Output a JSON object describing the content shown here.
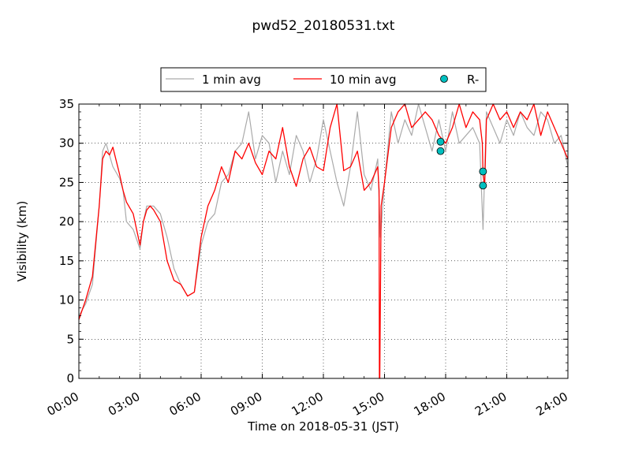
{
  "chart_data": {
    "type": "line",
    "title": "pwd52_20180531.txt",
    "xlabel": "Time on 2018-05-31 (JST)",
    "ylabel": "Visibility (km)",
    "xlim": [
      "00:00",
      "24:00"
    ],
    "ylim": [
      0,
      35
    ],
    "xticks": [
      "00:00",
      "03:00",
      "06:00",
      "09:00",
      "12:00",
      "15:00",
      "18:00",
      "21:00",
      "24:00"
    ],
    "yticks": [
      0,
      5,
      10,
      15,
      20,
      25,
      30,
      35
    ],
    "grid": true,
    "legend_placement": "top-center, outside plot",
    "colors": {
      "avg1": "#aaaaaa",
      "avg10": "#ff0000",
      "rain": "#00bfbf"
    },
    "series": [
      {
        "name": "1 min avg",
        "kind": "line",
        "x": [
          "00:00",
          "00:20",
          "00:40",
          "01:00",
          "01:10",
          "01:20",
          "01:40",
          "02:00",
          "02:10",
          "02:20",
          "02:40",
          "03:00",
          "03:10",
          "03:20",
          "03:40",
          "04:00",
          "04:20",
          "04:40",
          "05:00",
          "05:20",
          "05:40",
          "06:00",
          "06:20",
          "06:40",
          "07:00",
          "07:20",
          "07:40",
          "08:00",
          "08:20",
          "08:40",
          "09:00",
          "09:20",
          "09:40",
          "10:00",
          "10:20",
          "10:40",
          "11:00",
          "11:20",
          "11:40",
          "12:00",
          "12:20",
          "12:40",
          "13:00",
          "13:20",
          "13:40",
          "14:00",
          "14:20",
          "14:40",
          "14:48",
          "15:00",
          "15:20",
          "15:40",
          "16:00",
          "16:20",
          "16:40",
          "17:00",
          "17:20",
          "17:40",
          "18:00",
          "18:20",
          "18:40",
          "19:00",
          "19:20",
          "19:40",
          "19:50",
          "20:00",
          "20:20",
          "20:40",
          "21:00",
          "21:20",
          "21:40",
          "22:00",
          "22:20",
          "22:40",
          "23:00",
          "23:20",
          "23:40",
          "24:00"
        ],
        "y": [
          8,
          9.5,
          12,
          22,
          29,
          30,
          27,
          25.5,
          24,
          20,
          19,
          16.5,
          20,
          22,
          22,
          21,
          18,
          14,
          12,
          10.5,
          11,
          17,
          20,
          21,
          25,
          26,
          29,
          30,
          34,
          28,
          31,
          30,
          25,
          29,
          26,
          31,
          29,
          25,
          28,
          33,
          29,
          25,
          22,
          27,
          34,
          26,
          24,
          28,
          18,
          25,
          34,
          30,
          33,
          31,
          35,
          32,
          29,
          33,
          29,
          34,
          30,
          31,
          32,
          30,
          19,
          34,
          32,
          30,
          33,
          31,
          34,
          32,
          31,
          34,
          33,
          30,
          31,
          27
        ]
      },
      {
        "name": "10 min avg",
        "kind": "line",
        "x": [
          "00:00",
          "00:20",
          "00:40",
          "01:00",
          "01:10",
          "01:20",
          "01:30",
          "01:40",
          "02:00",
          "02:10",
          "02:20",
          "02:40",
          "03:00",
          "03:10",
          "03:20",
          "03:30",
          "03:40",
          "04:00",
          "04:20",
          "04:40",
          "05:00",
          "05:20",
          "05:40",
          "06:00",
          "06:20",
          "06:40",
          "07:00",
          "07:20",
          "07:40",
          "08:00",
          "08:20",
          "08:40",
          "09:00",
          "09:20",
          "09:40",
          "10:00",
          "10:20",
          "10:40",
          "11:00",
          "11:20",
          "11:40",
          "12:00",
          "12:20",
          "12:40",
          "13:00",
          "13:20",
          "13:40",
          "14:00",
          "14:20",
          "14:40",
          "14:44",
          "14:45",
          "14:46",
          "14:50",
          "15:00",
          "15:20",
          "15:40",
          "16:00",
          "16:20",
          "16:40",
          "17:00",
          "17:20",
          "17:40",
          "18:00",
          "18:20",
          "18:40",
          "19:00",
          "19:20",
          "19:40",
          "19:48",
          "19:50",
          "19:55",
          "20:00",
          "20:20",
          "20:40",
          "21:00",
          "21:20",
          "21:40",
          "22:00",
          "22:20",
          "22:40",
          "23:00",
          "23:20",
          "23:40",
          "24:00"
        ],
        "y": [
          7.5,
          10,
          13,
          22,
          28,
          29,
          28.5,
          29.5,
          26,
          24,
          22.5,
          21,
          17,
          20,
          21.5,
          22,
          21.5,
          20,
          15,
          12.5,
          12,
          10.5,
          11,
          18,
          22,
          24,
          27,
          25,
          29,
          28,
          30,
          27.5,
          26,
          29,
          28,
          32,
          27,
          24.5,
          28,
          29.5,
          27,
          26.5,
          32,
          35,
          26.5,
          27,
          29,
          24,
          25,
          27,
          24,
          0,
          0,
          22,
          25,
          32,
          34,
          35,
          32,
          33,
          34,
          33,
          31,
          30,
          32,
          35,
          32,
          34,
          33,
          30,
          26,
          24.5,
          33,
          35,
          33,
          34,
          32,
          34,
          33,
          35,
          31,
          34,
          32,
          30,
          28
        ]
      },
      {
        "name": "R-",
        "kind": "marker",
        "x": [
          "17:45",
          "17:45",
          "19:50",
          "19:50"
        ],
        "y": [
          30.2,
          29.0,
          26.4,
          24.6
        ]
      }
    ]
  }
}
